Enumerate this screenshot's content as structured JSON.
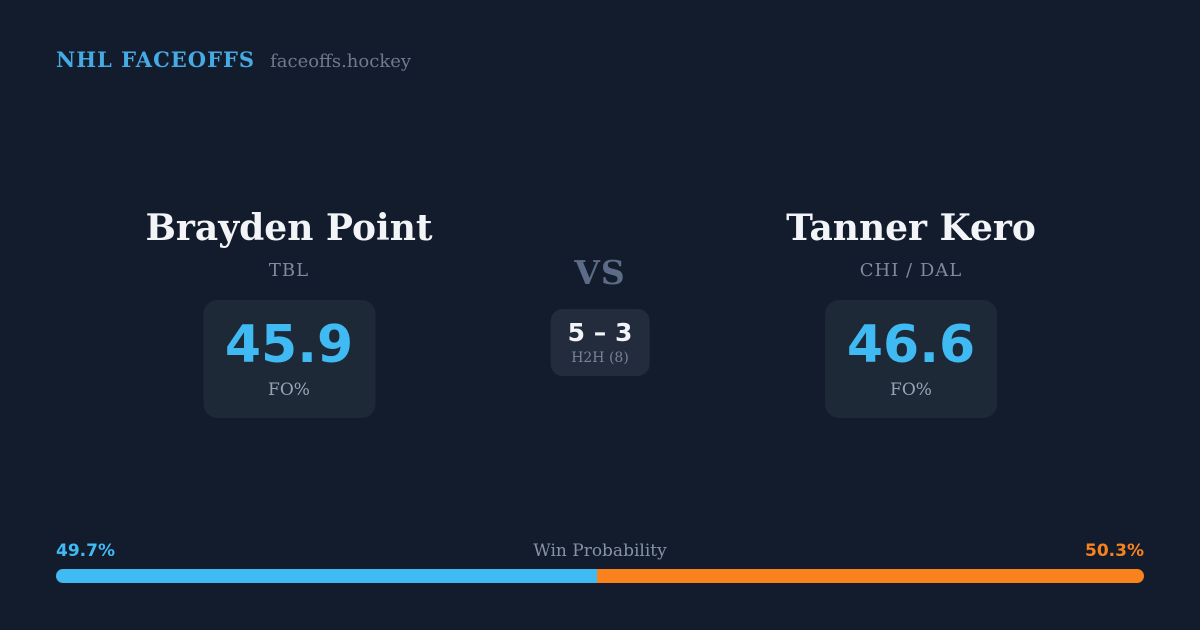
{
  "brand": {
    "logo": "NHL FACEOFFS",
    "domain": "faceoffs.hockey"
  },
  "players": [
    {
      "name": "Brayden Point",
      "team": "TBL",
      "stat_value": "45.9",
      "stat_label": "FO%"
    },
    {
      "name": "Tanner Kero",
      "team": "CHI / DAL",
      "stat_value": "46.6",
      "stat_label": "FO%"
    }
  ],
  "matchup": {
    "vs_label": "VS",
    "h2h_score": "5 – 3",
    "h2h_label": "H2H (8)"
  },
  "win_probability": {
    "title": "Win Probability",
    "left_label": "49.7%",
    "right_label": "50.3%",
    "left_value": 49.7,
    "right_value": 50.3
  },
  "colors": {
    "background": "#131c2c",
    "card_bg": "#1e2938",
    "h2h_card_bg": "#222c3c",
    "accent_blue": "#3fbaf3",
    "accent_orange": "#f9821d",
    "logo_blue": "#46aae4",
    "text_primary": "#f2f4f8",
    "text_muted": "#7d8ba1"
  }
}
